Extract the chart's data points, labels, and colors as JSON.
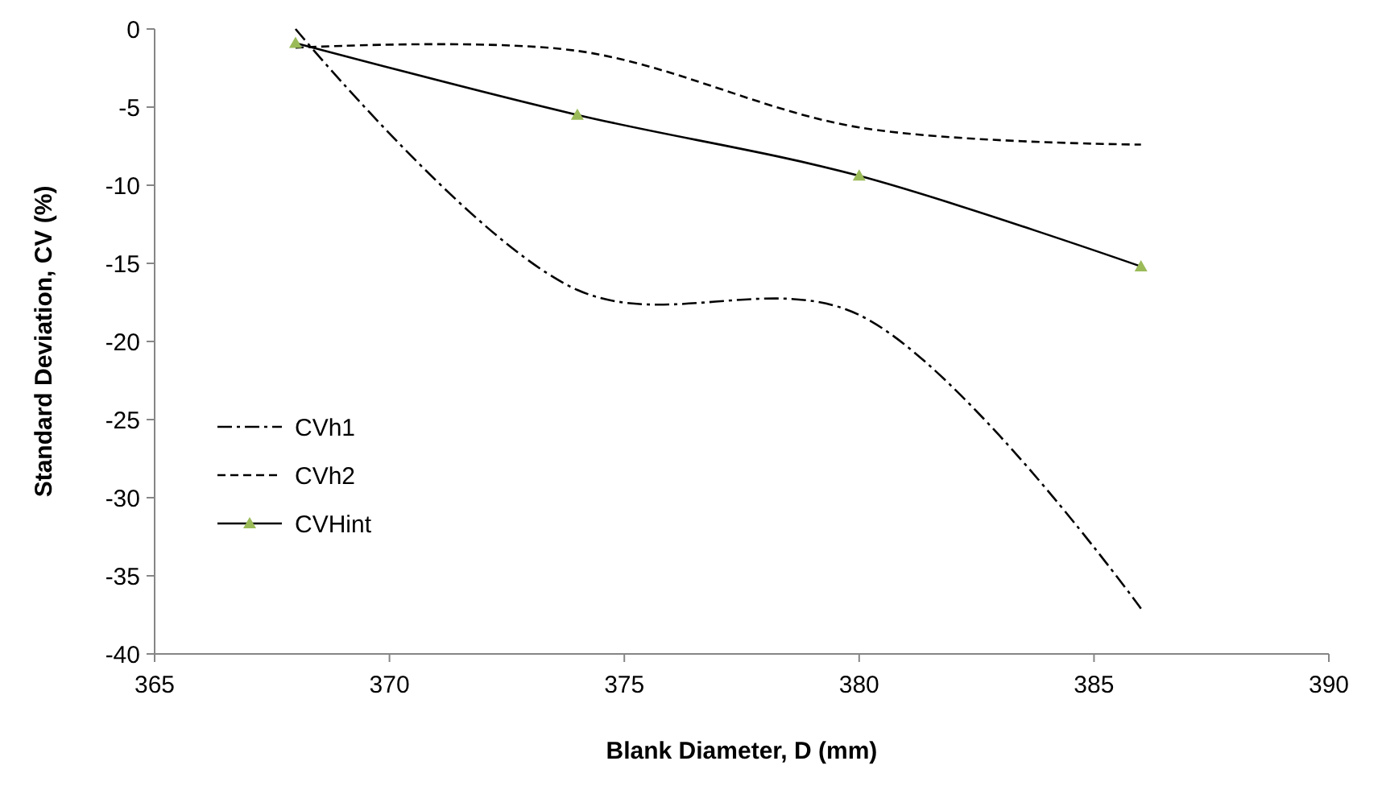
{
  "chart_data": {
    "type": "line",
    "xlabel": "Blank Diameter, D (mm)",
    "ylabel": "Standard Deviation, CV (%)",
    "x": [
      368,
      374,
      380,
      386
    ],
    "series": [
      {
        "name": "CVh1",
        "color": "#000000",
        "values": [
          0,
          -16.7,
          -18.3,
          -37.1
        ],
        "line_style": "dashdot",
        "marker": "none"
      },
      {
        "name": "CVh2",
        "color": "#000000",
        "values": [
          -1.2,
          -1.4,
          -6.3,
          -7.4
        ],
        "line_style": "dashed",
        "marker": "none"
      },
      {
        "name": "CVHint",
        "color": "#000000",
        "colors": [
          "#9bbb59",
          "#9bbb59",
          "#9bbb59",
          "#9bbb59"
        ],
        "values": [
          -0.9,
          -5.5,
          -9.4,
          -15.2
        ],
        "line_style": "solid",
        "marker": "triangle"
      }
    ],
    "xlim": [
      365,
      390
    ],
    "xticks": [
      365,
      370,
      375,
      380,
      385,
      390
    ],
    "ylim": [
      -40,
      0
    ],
    "yticks": [
      -40,
      -35,
      -30,
      -25,
      -20,
      -15,
      -10,
      -5,
      0
    ],
    "grid": false,
    "legend": "left"
  }
}
